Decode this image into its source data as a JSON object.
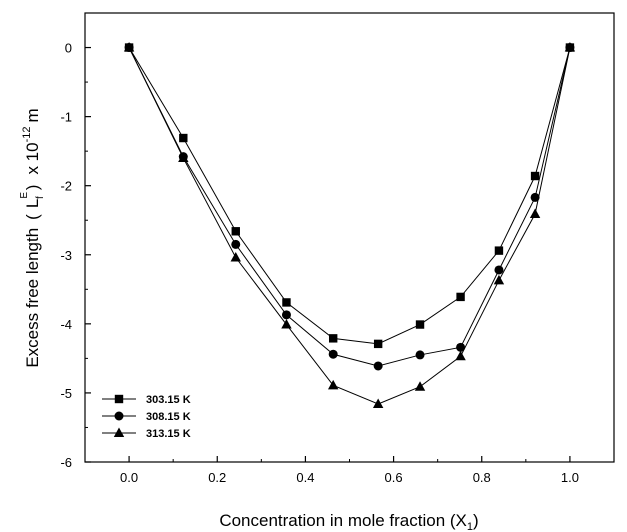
{
  "chart_data": {
    "type": "line",
    "x": [
      0.0,
      0.123,
      0.242,
      0.357,
      0.463,
      0.565,
      0.66,
      0.752,
      0.839,
      0.921,
      1.0
    ],
    "series": [
      {
        "name": "303.15 K",
        "marker": "square",
        "values": [
          0,
          -1.31,
          -2.66,
          -3.69,
          -4.21,
          -4.29,
          -4.01,
          -3.61,
          -2.94,
          -1.86,
          0
        ]
      },
      {
        "name": "308.15 K",
        "marker": "circle",
        "values": [
          0,
          -1.58,
          -2.85,
          -3.87,
          -4.44,
          -4.61,
          -4.45,
          -4.34,
          -3.22,
          -2.17,
          0
        ]
      },
      {
        "name": "313.15 K",
        "marker": "triangle",
        "values": [
          0,
          -1.6,
          -3.04,
          -4.01,
          -4.89,
          -5.16,
          -4.91,
          -4.47,
          -3.37,
          -2.41,
          0
        ]
      }
    ],
    "xlabel": "Concentration in mole fraction (X",
    "xlabel_sub": "1",
    "xlabel_close": ")",
    "ylabel": "Excess free length",
    "ylabel_symbol": "L",
    "ylabel_sup": "E",
    "ylabel_sub": "f",
    "ylabel_unit_prefix": "x 10",
    "ylabel_unit_exp": "-12",
    "ylabel_unit": "m",
    "xlim": [
      -0.1,
      1.1
    ],
    "ylim": [
      -6,
      0.5
    ],
    "xticks": [
      0.0,
      0.2,
      0.4,
      0.6,
      0.8,
      1.0
    ],
    "xtick_labels": [
      "0.0",
      "0.2",
      "0.4",
      "0.6",
      "0.8",
      "1.0"
    ],
    "yticks": [
      0,
      -1,
      -2,
      -3,
      -4,
      -5,
      -6
    ],
    "ytick_labels": [
      "0",
      "-1",
      "-2",
      "-3",
      "-4",
      "-5",
      "-6"
    ],
    "grid": false,
    "legend_position": "bottom-left",
    "colors": {
      "line": "#000000",
      "marker": "#000000",
      "axis": "#000000",
      "background": "#ffffff"
    }
  }
}
